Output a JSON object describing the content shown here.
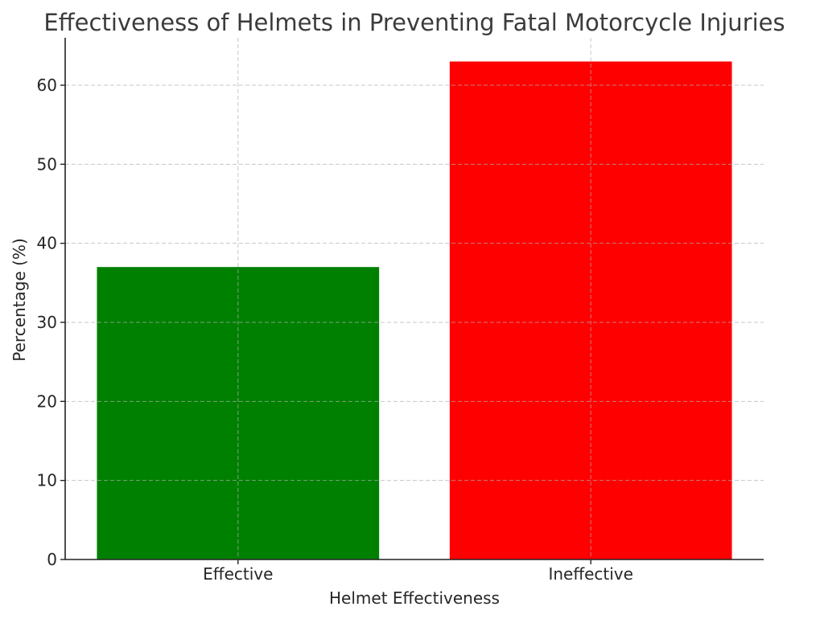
{
  "chart_data": {
    "type": "bar",
    "title": "Effectiveness of Helmets in Preventing Fatal Motorcycle Injuries",
    "xlabel": "Helmet Effectiveness",
    "ylabel": "Percentage (%)",
    "categories": [
      "Effective",
      "Ineffective"
    ],
    "values": [
      37,
      63
    ],
    "colors": [
      "#008000",
      "#ff0000"
    ],
    "ylim": [
      0,
      66
    ],
    "yticks": [
      0,
      10,
      20,
      30,
      40,
      50,
      60
    ],
    "grid": true,
    "legend": "none"
  }
}
